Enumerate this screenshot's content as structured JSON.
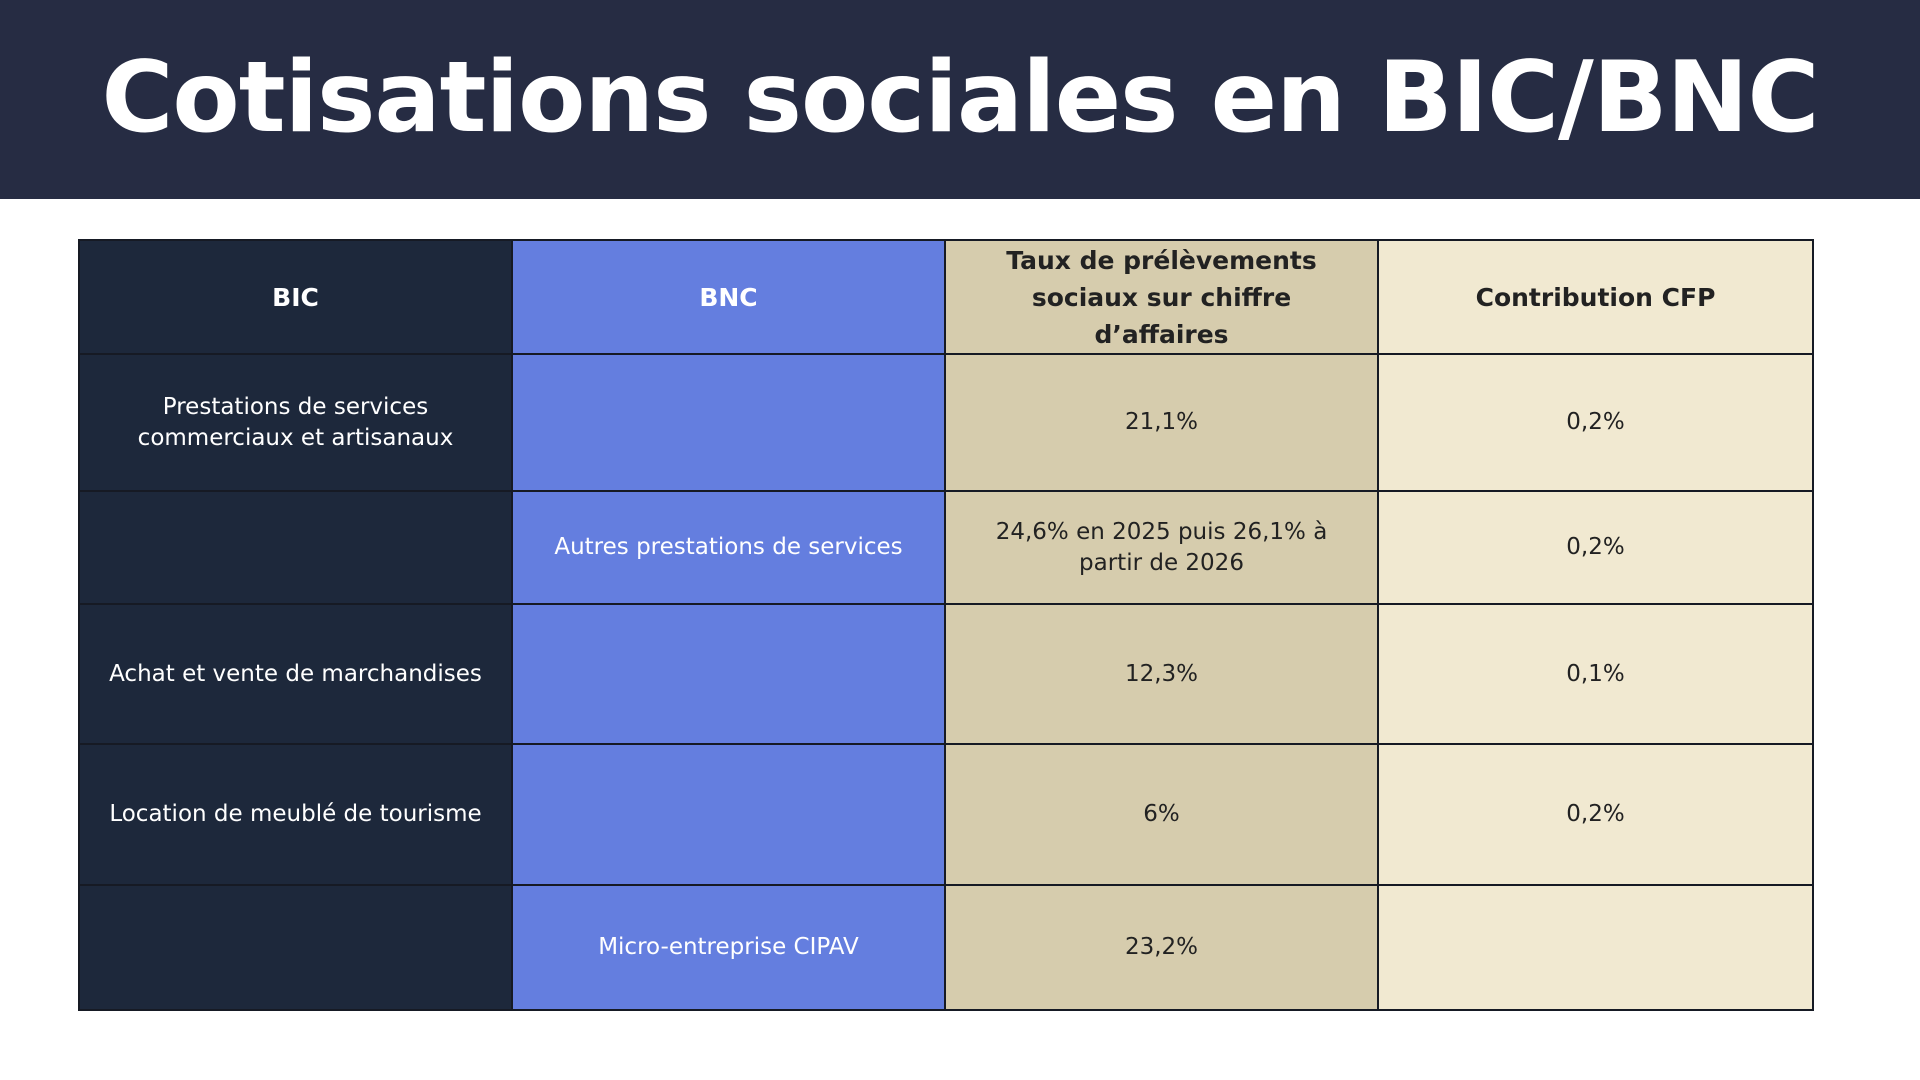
{
  "title": "Cotisations sociales en BIC/BNC",
  "table": {
    "headers": {
      "bic": "BIC",
      "bnc": "BNC",
      "taux": "Taux de prélèvements sociaux sur chiffre d’affaires",
      "cfp": "Contribution CFP"
    },
    "rows": [
      {
        "bic": "Prestations de services commerciaux et artisanaux",
        "bnc": "",
        "taux": "21,1%",
        "cfp": "0,2%"
      },
      {
        "bic": "",
        "bnc": "Autres prestations de services",
        "taux": "24,6% en 2025 puis 26,1% à partir de 2026",
        "cfp": "0,2%"
      },
      {
        "bic": "Achat et vente de marchandises",
        "bnc": "",
        "taux": "12,3%",
        "cfp": "0,1%"
      },
      {
        "bic": "Location de meublé de tourisme",
        "bnc": "",
        "taux": "6%",
        "cfp": "0,2%"
      },
      {
        "bic": "",
        "bnc": "Micro-entreprise CIPAV",
        "taux": "23,2%",
        "cfp": ""
      }
    ]
  },
  "colors": {
    "title_bar": "#262c43",
    "bic_column": "#1d283b",
    "bnc_column": "#647edf",
    "taux_column": "#d6ccad",
    "cfp_column": "#f1e9d1",
    "border": "#161a24"
  }
}
